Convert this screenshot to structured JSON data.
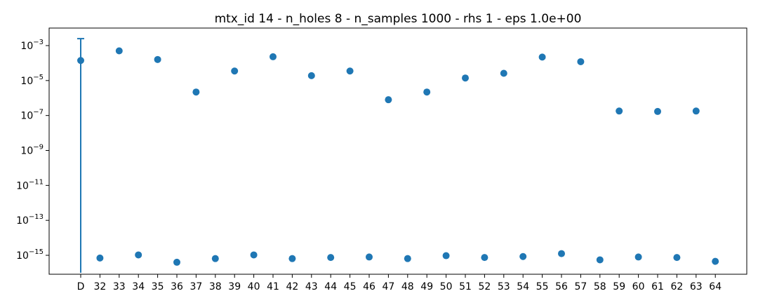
{
  "chart_data": {
    "type": "scatter",
    "title": "mtx_id 14 - n_holes 8 - n_samples 1000 - rhs 1 - eps 1.0e+00",
    "xlabel": "",
    "ylabel": "",
    "y_scale": "log",
    "ylim": [
      1e-16,
      0.005
    ],
    "grid": false,
    "legend": "none",
    "color": "#1f77b4",
    "categories": [
      "D",
      "32",
      "33",
      "34",
      "35",
      "36",
      "37",
      "38",
      "39",
      "40",
      "41",
      "42",
      "43",
      "44",
      "45",
      "46",
      "47",
      "48",
      "49",
      "50",
      "51",
      "52",
      "53",
      "54",
      "55",
      "56",
      "57",
      "58",
      "59",
      "60",
      "61",
      "62",
      "63",
      "64"
    ],
    "values": [
      0.00014,
      7e-16,
      0.0005,
      1.05e-15,
      0.00016,
      4e-16,
      2.2e-06,
      6.5e-16,
      3.5e-05,
      1.05e-15,
      0.00023,
      6.5e-16,
      1.9e-05,
      7.5e-16,
      3.5e-05,
      8e-16,
      8e-07,
      6.5e-16,
      2.2e-06,
      9.5e-16,
      1.4e-05,
      7.5e-16,
      2.6e-05,
      8.5e-16,
      0.00022,
      1.25e-15,
      0.00012,
      5.5e-16,
      1.8e-07,
      8e-16,
      1.7e-07,
      7.5e-16,
      1.8e-07,
      4.5e-16
    ],
    "error_bars": [
      {
        "category": "D",
        "lower": 1e-16,
        "upper": 0.0025
      }
    ],
    "yticks": [
      {
        "exp": -3,
        "label": "10",
        "sup": "−3"
      },
      {
        "exp": -5,
        "label": "10",
        "sup": "−5"
      },
      {
        "exp": -7,
        "label": "10",
        "sup": "−7"
      },
      {
        "exp": -9,
        "label": "10",
        "sup": "−9"
      },
      {
        "exp": -11,
        "label": "10",
        "sup": "−11"
      },
      {
        "exp": -13,
        "label": "10",
        "sup": "−13"
      },
      {
        "exp": -15,
        "label": "10",
        "sup": "−15"
      }
    ]
  }
}
